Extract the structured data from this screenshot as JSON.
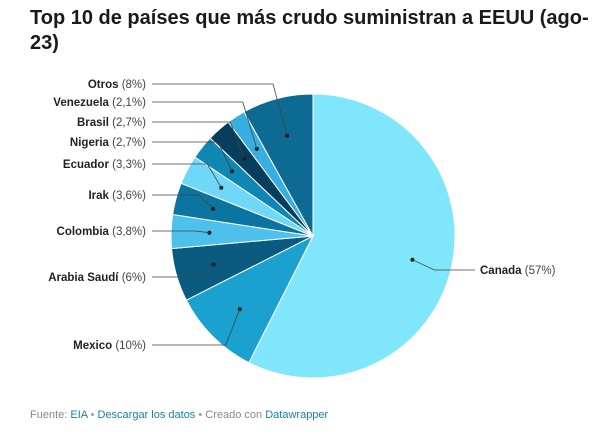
{
  "chart_data": {
    "type": "pie",
    "title": "Top 10 de países que más crudo suministran a EEUU (ago-23)",
    "slices": [
      {
        "name": "Canada",
        "value": 57,
        "value_label": "57%",
        "color": "#7fe6fb"
      },
      {
        "name": "Mexico",
        "value": 10,
        "value_label": "10%",
        "color": "#1aa1d0"
      },
      {
        "name": "Arabia Saudí",
        "value": 6,
        "value_label": "6%",
        "color": "#0b5a80"
      },
      {
        "name": "Colombia",
        "value": 3.8,
        "value_label": "3,8%",
        "color": "#4ec0ec"
      },
      {
        "name": "Irak",
        "value": 3.6,
        "value_label": "3,6%",
        "color": "#0b74a0"
      },
      {
        "name": "Ecuador",
        "value": 3.3,
        "value_label": "3,3%",
        "color": "#6fd8f8"
      },
      {
        "name": "Nigeria",
        "value": 2.7,
        "value_label": "2,7%",
        "color": "#0f87b4"
      },
      {
        "name": "Brasil",
        "value": 2.7,
        "value_label": "2,7%",
        "color": "#063e5c"
      },
      {
        "name": "Venezuela",
        "value": 2.1,
        "value_label": "2,1%",
        "color": "#36aee0"
      },
      {
        "name": "Otros",
        "value": 8,
        "value_label": "8%",
        "color": "#0d6a93"
      }
    ]
  },
  "footer": {
    "source_label": "Fuente:",
    "source_link": "EIA",
    "separator": "•",
    "download_link": "Descargar los datos",
    "created_label": "Creado con",
    "created_link": "Datawrapper"
  }
}
